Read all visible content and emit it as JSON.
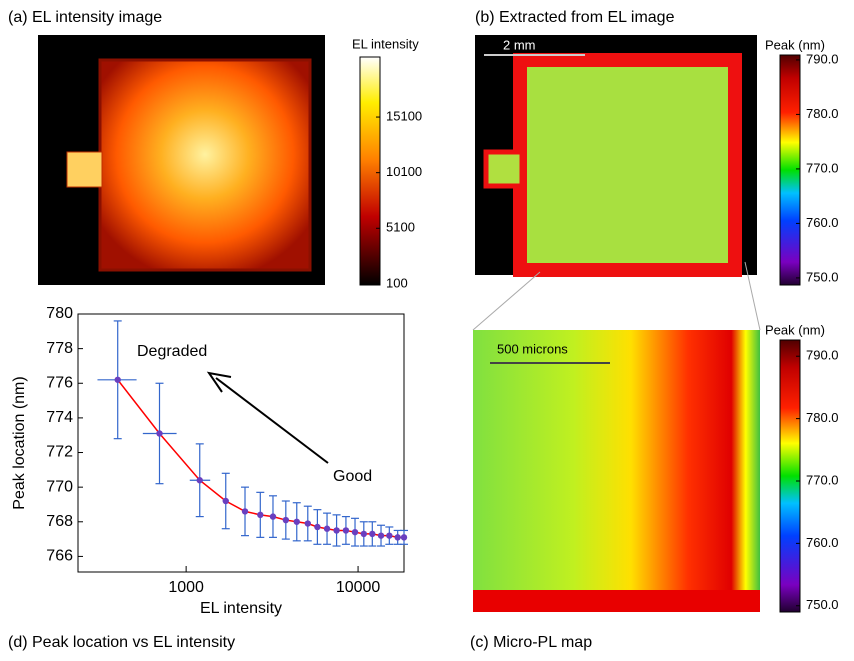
{
  "panels": {
    "a": {
      "title": "(a) EL intensity image",
      "colorbar_label": "EL intensity",
      "colorbar_lim": [
        0,
        20500
      ],
      "colorbar_ticks": [
        100,
        5100,
        10100,
        15100
      ]
    },
    "b": {
      "title": "(b) Extracted from EL image",
      "scale_label": "2 mm",
      "colorbar_label": "Peak (nm)",
      "colorbar_lim": [
        748.7,
        790.9
      ],
      "colorbar_ticks": [
        {
          "value": 750,
          "label": "750.0"
        },
        {
          "value": 760,
          "label": "760.0"
        },
        {
          "value": 770,
          "label": "770.0"
        },
        {
          "value": 780,
          "label": "780.0"
        },
        {
          "value": 790,
          "label": "790.0"
        }
      ]
    },
    "c": {
      "title": "(c) Micro-PL map",
      "scale_label": "500 microns",
      "colorbar_label": "Peak (nm)",
      "colorbar_lim": [
        749.0,
        792.6
      ],
      "colorbar_ticks": [
        {
          "value": 750,
          "label": "750.0"
        },
        {
          "value": 760,
          "label": "760.0"
        },
        {
          "value": 770,
          "label": "770.0"
        },
        {
          "value": 780,
          "label": "780.0"
        },
        {
          "value": 790,
          "label": "790.0"
        }
      ]
    }
  },
  "chart_data": {
    "type": "errorbar",
    "title": "(d) Peak location vs EL intensity",
    "x_label": "EL intensity",
    "y_label": "Peak location (nm)",
    "annotations": [
      "Degraded",
      "Good"
    ],
    "x": [
      400,
      700,
      1200,
      1700,
      2200,
      2700,
      3200,
      3800,
      4400,
      5100,
      5800,
      6600,
      7500,
      8500,
      9600,
      10800,
      12100,
      13600,
      15200,
      17000,
      18500
    ],
    "values": [
      776.2,
      773.1,
      770.4,
      769.2,
      768.6,
      768.4,
      768.3,
      768.1,
      768.0,
      767.9,
      767.7,
      767.6,
      767.5,
      767.5,
      767.4,
      767.3,
      767.3,
      767.2,
      767.2,
      767.1,
      767.1
    ],
    "yerr": [
      3.4,
      2.9,
      2.1,
      1.6,
      1.4,
      1.3,
      1.2,
      1.1,
      1.1,
      1.0,
      1.0,
      0.9,
      0.9,
      0.8,
      0.8,
      0.7,
      0.7,
      0.6,
      0.5,
      0.4,
      0.4
    ],
    "xerr": [
      [
        305,
        515
      ],
      [
        560,
        880
      ],
      [
        1050,
        1380
      ],
      null,
      null,
      null,
      null,
      null,
      null,
      null,
      null,
      null,
      null,
      null,
      null,
      null,
      null,
      null,
      null,
      null,
      null
    ],
    "line_color": "#ff0000",
    "marker_color": "#6a3fbf",
    "error_color": "#3366cc",
    "xscale": "log",
    "xlim": [
      235,
      18500
    ],
    "ylim": [
      765.1,
      780
    ],
    "xticks": [
      1000,
      10000
    ],
    "yticks": [
      766,
      768,
      770,
      772,
      774,
      776,
      778,
      780
    ]
  }
}
